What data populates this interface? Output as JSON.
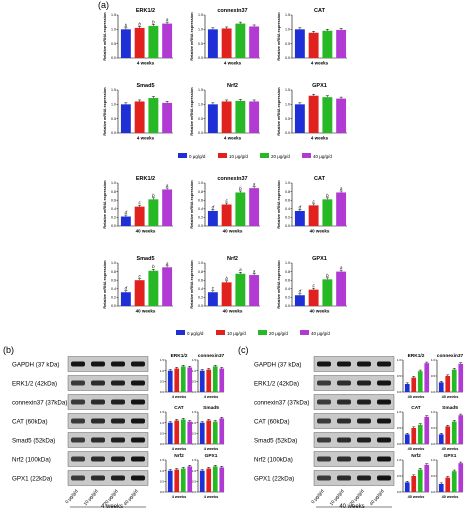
{
  "figure": {
    "panel_a": "(a)",
    "panel_b": "(b)",
    "panel_c": "(c)",
    "ylabel": "Relative mRNA expression",
    "legend": [
      "0 μg/g/d",
      "10 μg/g/d",
      "20 μg/g/d",
      "40 μg/g/d"
    ],
    "series_colors": [
      "#1f2fd6",
      "#e0211d",
      "#27b826",
      "#b13ad3"
    ],
    "blot_b_time": "4 weeks",
    "blot_c_time": "40 weeks",
    "blot_lanes": [
      "0 μg/g/d",
      "10 μg/g/d",
      "20 μg/g/d",
      "40 μg/g/d"
    ],
    "blot_labels_b": [
      "GAPDH (37 kDa)",
      "ERK1/2 (42kDa)",
      "connexin37 (37kDa)",
      "CAT (60kDa)",
      "Smad5 (52kDa)",
      "Nrf2 (100kDa)",
      "GPX1 (22kDa)"
    ],
    "blot_labels_c": [
      "GAPDH (37 kDa)",
      "ERK1/2 (42kDa)",
      "connexin37 (37kDa)",
      "CAT (60kDa)",
      "Smad5 (52kDa)",
      "Nrf2 (100kDa)",
      "GPX1 (22kDa)"
    ]
  },
  "chart_data": [
    {
      "type": "bar",
      "panel": "a",
      "title": "ERK1/2",
      "xlabel": "4 weeks",
      "ylabel": "Relative mRNA expression",
      "categories": [
        "0 μg/g/d",
        "10 μg/g/d",
        "20 μg/g/d",
        "40 μg/g/d"
      ],
      "values": [
        1.0,
        1.05,
        1.12,
        1.2
      ],
      "letters": [
        "b",
        "b",
        "b",
        "a"
      ],
      "ylim": [
        0,
        1.5
      ],
      "yticks": [
        0.0,
        0.5,
        1.0,
        1.5
      ]
    },
    {
      "type": "bar",
      "panel": "a",
      "title": "connexin37",
      "xlabel": "4 weeks",
      "ylabel": "Relative mRNA expression",
      "categories": [
        "0 μg/g/d",
        "10 μg/g/d",
        "20 μg/g/d",
        "40 μg/g/d"
      ],
      "values": [
        1.0,
        1.03,
        1.2,
        1.1
      ],
      "letters": [
        "",
        "",
        "",
        ""
      ],
      "ylim": [
        0,
        1.5
      ],
      "yticks": [
        0.0,
        0.5,
        1.0,
        1.5
      ]
    },
    {
      "type": "bar",
      "panel": "a",
      "title": "CAT",
      "xlabel": "4 weeks",
      "ylabel": "Relative mRNA expression",
      "categories": [
        "0 μg/g/d",
        "10 μg/g/d",
        "20 μg/g/d",
        "40 μg/g/d"
      ],
      "values": [
        1.0,
        0.88,
        0.95,
        0.98
      ],
      "letters": [
        "",
        "",
        "",
        ""
      ],
      "ylim": [
        0,
        1.5
      ],
      "yticks": [
        0.0,
        0.5,
        1.0,
        1.5
      ]
    },
    {
      "type": "bar",
      "panel": "a",
      "title": "Smad5",
      "xlabel": "4 weeks",
      "ylabel": "Relative mRNA expression",
      "categories": [
        "0 μg/g/d",
        "10 μg/g/d",
        "20 μg/g/d",
        "40 μg/g/d"
      ],
      "values": [
        1.0,
        1.1,
        1.22,
        1.05
      ],
      "letters": [
        "",
        "",
        "",
        ""
      ],
      "ylim": [
        0,
        1.5
      ],
      "yticks": [
        0.0,
        0.5,
        1.0,
        1.5
      ]
    },
    {
      "type": "bar",
      "panel": "a",
      "title": "Nrf2",
      "xlabel": "4 weeks",
      "ylabel": "Relative mRNA expression",
      "categories": [
        "0 μg/g/d",
        "10 μg/g/d",
        "20 μg/g/d",
        "40 μg/g/d"
      ],
      "values": [
        1.0,
        1.1,
        1.12,
        1.1
      ],
      "letters": [
        "",
        "",
        "",
        ""
      ],
      "ylim": [
        0,
        1.5
      ],
      "yticks": [
        0.0,
        0.5,
        1.0,
        1.5
      ]
    },
    {
      "type": "bar",
      "panel": "a",
      "title": "GPX1",
      "xlabel": "4 weeks",
      "ylabel": "Relative mRNA expression",
      "categories": [
        "0 μg/g/d",
        "10 μg/g/d",
        "20 μg/g/d",
        "40 μg/g/d"
      ],
      "values": [
        1.0,
        1.3,
        1.25,
        1.2
      ],
      "letters": [
        "",
        "",
        "",
        ""
      ],
      "ylim": [
        0,
        1.5
      ],
      "yticks": [
        0.0,
        0.5,
        1.0,
        1.5
      ]
    },
    {
      "type": "bar",
      "panel": "a",
      "title": "ERK1/2",
      "xlabel": "40 weeks",
      "ylabel": "Relative mRNA expression",
      "categories": [
        "0 μg/g/d",
        "10 μg/g/d",
        "20 μg/g/d",
        "40 μg/g/d"
      ],
      "values": [
        0.22,
        0.45,
        0.62,
        0.85
      ],
      "letters": [
        "d",
        "c",
        "b",
        "a"
      ],
      "ylim": [
        0,
        1.0
      ],
      "yticks": [
        0.0,
        0.2,
        0.4,
        0.6,
        0.8,
        1.0
      ]
    },
    {
      "type": "bar",
      "panel": "a",
      "title": "connexin37",
      "xlabel": "40 weeks",
      "ylabel": "Relative mRNA expression",
      "categories": [
        "0 μg/g/d",
        "10 μg/g/d",
        "20 μg/g/d",
        "40 μg/g/d"
      ],
      "values": [
        0.35,
        0.5,
        0.78,
        0.88
      ],
      "letters": [
        "d",
        "c",
        "b",
        "a"
      ],
      "ylim": [
        0,
        1.0
      ],
      "yticks": [
        0.0,
        0.2,
        0.4,
        0.6,
        0.8,
        1.0
      ]
    },
    {
      "type": "bar",
      "panel": "a",
      "title": "CAT",
      "xlabel": "40 weeks",
      "ylabel": "Relative mRNA expression",
      "categories": [
        "0 μg/g/d",
        "10 μg/g/d",
        "20 μg/g/d",
        "40 μg/g/d"
      ],
      "values": [
        0.35,
        0.48,
        0.62,
        0.78
      ],
      "letters": [
        "d",
        "c",
        "b",
        "a"
      ],
      "ylim": [
        0,
        1.0
      ],
      "yticks": [
        0.0,
        0.2,
        0.4,
        0.6,
        0.8,
        1.0
      ]
    },
    {
      "type": "bar",
      "panel": "a",
      "title": "Smad5",
      "xlabel": "40 weeks",
      "ylabel": "Relative mRNA expression",
      "categories": [
        "0 μg/g/d",
        "10 μg/g/d",
        "20 μg/g/d",
        "40 μg/g/d"
      ],
      "values": [
        0.32,
        0.6,
        0.82,
        0.9
      ],
      "letters": [
        "d",
        "c",
        "b",
        "a"
      ],
      "ylim": [
        0,
        1.0
      ],
      "yticks": [
        0.0,
        0.2,
        0.4,
        0.6,
        0.8,
        1.0
      ]
    },
    {
      "type": "bar",
      "panel": "a",
      "title": "Nrf2",
      "xlabel": "40 weeks",
      "ylabel": "Relative mRNA expression",
      "categories": [
        "0 μg/g/d",
        "10 μg/g/d",
        "20 μg/g/d",
        "40 μg/g/d"
      ],
      "values": [
        0.32,
        0.55,
        0.75,
        0.72
      ],
      "letters": [
        "c",
        "b",
        "a",
        "a"
      ],
      "ylim": [
        0,
        1.0
      ],
      "yticks": [
        0.0,
        0.2,
        0.4,
        0.6,
        0.8,
        1.0
      ]
    },
    {
      "type": "bar",
      "panel": "a",
      "title": "GPX1",
      "xlabel": "40 weeks",
      "ylabel": "Relative mRNA expression",
      "categories": [
        "0 μg/g/d",
        "10 μg/g/d",
        "20 μg/g/d",
        "40 μg/g/d"
      ],
      "values": [
        0.25,
        0.38,
        0.62,
        0.8
      ],
      "letters": [
        "d",
        "c",
        "b",
        "a"
      ],
      "ylim": [
        0,
        1.0
      ],
      "yticks": [
        0.0,
        0.2,
        0.4,
        0.6,
        0.8,
        1.0
      ]
    },
    {
      "type": "bar",
      "panel": "b",
      "title": "ERK1/2",
      "xlabel": "4 weeks",
      "ylabel": "",
      "categories": [
        "0 μg/g/d",
        "10 μg/g/d",
        "20 μg/g/d",
        "40 μg/g/d"
      ],
      "values": [
        1.0,
        1.1,
        1.2,
        1.15
      ],
      "letters": [
        "",
        "",
        "",
        ""
      ],
      "ylim": [
        0,
        1.5
      ],
      "yticks": [
        0.0,
        0.5,
        1.0,
        1.5
      ]
    },
    {
      "type": "bar",
      "panel": "b",
      "title": "connexin37",
      "xlabel": "4 weeks",
      "ylabel": "",
      "categories": [
        "0 μg/g/d",
        "10 μg/g/d",
        "20 μg/g/d",
        "40 μg/g/d"
      ],
      "values": [
        1.0,
        1.05,
        1.2,
        1.1
      ],
      "letters": [
        "",
        "",
        "",
        ""
      ],
      "ylim": [
        0,
        1.5
      ],
      "yticks": [
        0.0,
        0.5,
        1.0,
        1.5
      ]
    },
    {
      "type": "bar",
      "panel": "b",
      "title": "CAT",
      "xlabel": "4 weeks",
      "ylabel": "",
      "categories": [
        "0 μg/g/d",
        "10 μg/g/d",
        "20 μg/g/d",
        "40 μg/g/d"
      ],
      "values": [
        1.0,
        1.1,
        1.15,
        1.05
      ],
      "letters": [
        "",
        "",
        "",
        ""
      ],
      "ylim": [
        0,
        1.5
      ],
      "yticks": [
        0.0,
        0.5,
        1.0,
        1.5
      ]
    },
    {
      "type": "bar",
      "panel": "b",
      "title": "Smad5",
      "xlabel": "4 weeks",
      "ylabel": "",
      "categories": [
        "0 μg/g/d",
        "10 μg/g/d",
        "20 μg/g/d",
        "40 μg/g/d"
      ],
      "values": [
        1.0,
        1.1,
        1.05,
        1.2
      ],
      "letters": [
        "",
        "",
        "",
        ""
      ],
      "ylim": [
        0,
        1.5
      ],
      "yticks": [
        0.0,
        0.5,
        1.0,
        1.5
      ]
    },
    {
      "type": "bar",
      "panel": "b",
      "title": "Nrf2",
      "xlabel": "4 weeks",
      "ylabel": "",
      "categories": [
        "0 μg/g/d",
        "10 μg/g/d",
        "20 μg/g/d",
        "40 μg/g/d"
      ],
      "values": [
        1.0,
        1.05,
        1.1,
        1.2
      ],
      "letters": [
        "",
        "",
        "",
        ""
      ],
      "ylim": [
        0,
        1.5
      ],
      "yticks": [
        0.0,
        0.5,
        1.0,
        1.5
      ]
    },
    {
      "type": "bar",
      "panel": "b",
      "title": "GPX1",
      "xlabel": "4 weeks",
      "ylabel": "",
      "categories": [
        "0 μg/g/d",
        "10 μg/g/d",
        "20 μg/g/d",
        "40 μg/g/d"
      ],
      "values": [
        1.0,
        1.1,
        1.2,
        1.15
      ],
      "letters": [
        "",
        "",
        "",
        ""
      ],
      "ylim": [
        0,
        1.5
      ],
      "yticks": [
        0.0,
        0.5,
        1.0,
        1.5
      ]
    },
    {
      "type": "bar",
      "panel": "c",
      "title": "ERK1/2",
      "xlabel": "40 weeks",
      "ylabel": "",
      "categories": [
        "0 μg/g/d",
        "10 μg/g/d",
        "20 μg/g/d",
        "40 μg/g/d"
      ],
      "values": [
        0.25,
        0.45,
        0.65,
        0.9
      ],
      "letters": [
        "",
        "",
        "",
        ""
      ],
      "ylim": [
        0,
        1.0
      ],
      "yticks": [
        0.0,
        0.5,
        1.0
      ]
    },
    {
      "type": "bar",
      "panel": "c",
      "title": "connexin37",
      "xlabel": "40 weeks",
      "ylabel": "",
      "categories": [
        "0 μg/g/d",
        "10 μg/g/d",
        "20 μg/g/d",
        "40 μg/g/d"
      ],
      "values": [
        0.3,
        0.5,
        0.7,
        0.88
      ],
      "letters": [
        "",
        "",
        "",
        ""
      ],
      "ylim": [
        0,
        1.0
      ],
      "yticks": [
        0.0,
        0.5,
        1.0
      ]
    },
    {
      "type": "bar",
      "panel": "c",
      "title": "CAT",
      "xlabel": "40 weeks",
      "ylabel": "",
      "categories": [
        "0 μg/g/d",
        "10 μg/g/d",
        "20 μg/g/d",
        "40 μg/g/d"
      ],
      "values": [
        0.3,
        0.5,
        0.6,
        0.85
      ],
      "letters": [
        "",
        "",
        "",
        ""
      ],
      "ylim": [
        0,
        1.0
      ],
      "yticks": [
        0.0,
        0.5,
        1.0
      ]
    },
    {
      "type": "bar",
      "panel": "c",
      "title": "Smad5",
      "xlabel": "40 weeks",
      "ylabel": "",
      "categories": [
        "0 μg/g/d",
        "10 μg/g/d",
        "20 μg/g/d",
        "40 μg/g/d"
      ],
      "values": [
        0.3,
        0.55,
        0.7,
        0.9
      ],
      "letters": [
        "",
        "",
        "",
        ""
      ],
      "ylim": [
        0,
        1.0
      ],
      "yticks": [
        0.0,
        0.5,
        1.0
      ]
    },
    {
      "type": "bar",
      "panel": "c",
      "title": "Nrf2",
      "xlabel": "40 weeks",
      "ylabel": "",
      "categories": [
        "0 μg/g/d",
        "10 μg/g/d",
        "20 μg/g/d",
        "40 μg/g/d"
      ],
      "values": [
        0.3,
        0.5,
        0.7,
        0.85
      ],
      "letters": [
        "",
        "",
        "",
        ""
      ],
      "ylim": [
        0,
        1.0
      ],
      "yticks": [
        0.0,
        0.5,
        1.0
      ]
    },
    {
      "type": "bar",
      "panel": "c",
      "title": "GPX1",
      "xlabel": "40 weeks",
      "ylabel": "",
      "categories": [
        "0 μg/g/d",
        "10 μg/g/d",
        "20 μg/g/d",
        "40 μg/g/d"
      ],
      "values": [
        0.25,
        0.45,
        0.65,
        0.9
      ],
      "letters": [
        "",
        "",
        "",
        ""
      ],
      "ylim": [
        0,
        1.0
      ],
      "yticks": [
        0.0,
        0.5,
        1.0
      ]
    }
  ]
}
